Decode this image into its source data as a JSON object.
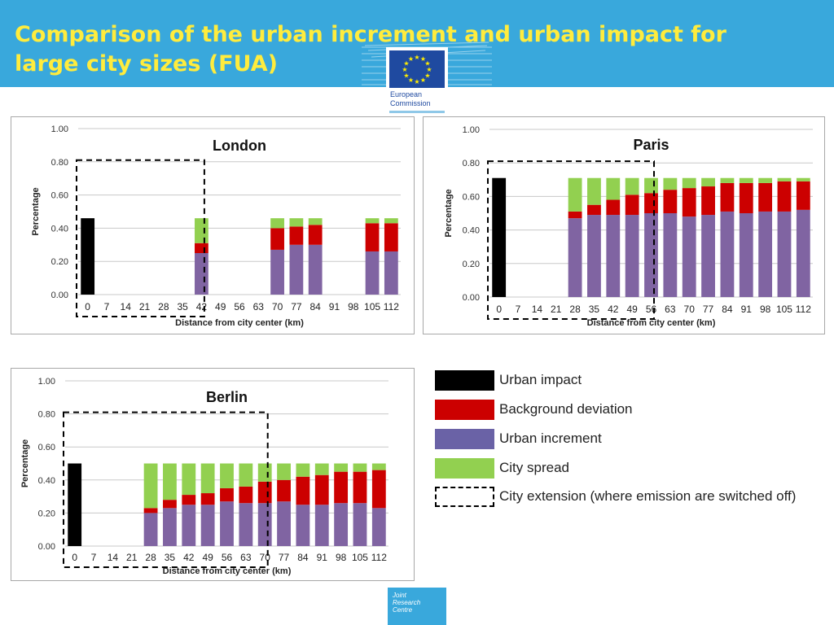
{
  "slide": {
    "title_line1": "Comparison of the urban increment and urban impact for",
    "title_line2": "large city sizes (FUA)",
    "logo": {
      "line1": "European",
      "line2": "Commission",
      "flag_color": "#1f4aa0",
      "star_color": "#ffed00"
    },
    "footer_logo": {
      "line1": "Joint",
      "line2": "Research",
      "line3": "Centre"
    }
  },
  "colors": {
    "urban_impact": "#000000",
    "background_deviation": "#cc0000",
    "urban_increment": "#8064a2",
    "city_spread": "#92d050",
    "header": "#39a8dc",
    "title": "#ffec3d"
  },
  "legend": [
    {
      "label": "Urban impact",
      "color": "#000000",
      "style": "solid"
    },
    {
      "label": "Background deviation",
      "color": "#cc0000",
      "style": "solid"
    },
    {
      "label": "Urban increment",
      "color": "#6a62a6",
      "style": "solid"
    },
    {
      "label": "City spread",
      "color": "#92d050",
      "style": "solid"
    },
    {
      "label": "City extension (where emission are switched off)",
      "color": "#000000",
      "style": "dashed"
    }
  ],
  "chart_data": [
    {
      "type": "bar",
      "stacked": true,
      "title": "London",
      "xlabel": "Distance from city center (km)",
      "ylabel": "Percentage",
      "ylim": [
        0,
        1
      ],
      "yticks": [
        "0.00",
        "0.20",
        "0.40",
        "0.60",
        "0.80",
        "1.00"
      ],
      "categories": [
        "0",
        "7",
        "14",
        "21",
        "28",
        "35",
        "42",
        "49",
        "56",
        "63",
        "70",
        "77",
        "84",
        "91",
        "98",
        "105",
        "112"
      ],
      "grid": true,
      "urban_impact": [
        0.46,
        0,
        0,
        0,
        0,
        0,
        0,
        0,
        0,
        0,
        0,
        0,
        0,
        0,
        0,
        0,
        0
      ],
      "series": [
        {
          "name": "Urban increment",
          "values": [
            0,
            0,
            0,
            0,
            0,
            0,
            0.25,
            0,
            0,
            0,
            0.27,
            0.3,
            0.3,
            0,
            0,
            0.26,
            0.26
          ]
        },
        {
          "name": "Background deviation",
          "values": [
            0,
            0,
            0,
            0,
            0,
            0,
            0.06,
            0,
            0,
            0,
            0.13,
            0.11,
            0.12,
            0,
            0,
            0.17,
            0.17
          ]
        },
        {
          "name": "City spread",
          "values": [
            0,
            0,
            0,
            0,
            0,
            0,
            0.15,
            0,
            0,
            0,
            0.06,
            0.05,
            0.04,
            0,
            0,
            0.03,
            0.03
          ]
        }
      ],
      "city_extension": {
        "from": "0",
        "to": "42",
        "top": 0.81
      }
    },
    {
      "type": "bar",
      "stacked": true,
      "title": "Paris",
      "xlabel": "Distance from city center (km)",
      "ylabel": "Percentage",
      "ylim": [
        0,
        1
      ],
      "yticks": [
        "0.00",
        "0.20",
        "0.40",
        "0.60",
        "0.80",
        "1.00"
      ],
      "categories": [
        "0",
        "7",
        "14",
        "21",
        "28",
        "35",
        "42",
        "49",
        "56",
        "63",
        "70",
        "77",
        "84",
        "91",
        "98",
        "105",
        "112"
      ],
      "grid": true,
      "urban_impact": [
        0.71,
        0,
        0,
        0,
        0,
        0,
        0,
        0,
        0,
        0,
        0,
        0,
        0,
        0,
        0,
        0,
        0
      ],
      "series": [
        {
          "name": "Urban increment",
          "values": [
            0,
            0,
            0,
            0,
            0.47,
            0.49,
            0.49,
            0.49,
            0.5,
            0.5,
            0.48,
            0.49,
            0.51,
            0.5,
            0.51,
            0.51,
            0.52
          ]
        },
        {
          "name": "Background deviation",
          "values": [
            0,
            0,
            0,
            0,
            0.04,
            0.06,
            0.09,
            0.12,
            0.12,
            0.14,
            0.17,
            0.17,
            0.17,
            0.18,
            0.17,
            0.18,
            0.17
          ]
        },
        {
          "name": "City spread",
          "values": [
            0,
            0,
            0,
            0,
            0.2,
            0.16,
            0.13,
            0.1,
            0.09,
            0.07,
            0.06,
            0.05,
            0.03,
            0.03,
            0.03,
            0.02,
            0.02
          ]
        }
      ],
      "city_extension": {
        "from": "0",
        "to": "56",
        "top": 0.81
      }
    },
    {
      "type": "bar",
      "stacked": true,
      "title": "Berlin",
      "xlabel": "Distance from city center (km)",
      "ylabel": "Percentage",
      "ylim": [
        0,
        1
      ],
      "yticks": [
        "0.00",
        "0.20",
        "0.40",
        "0.60",
        "0.80",
        "1.00"
      ],
      "categories": [
        "0",
        "7",
        "14",
        "21",
        "28",
        "35",
        "42",
        "49",
        "56",
        "63",
        "70",
        "77",
        "84",
        "91",
        "98",
        "105",
        "112"
      ],
      "grid": true,
      "urban_impact": [
        0.5,
        0,
        0,
        0,
        0,
        0,
        0,
        0,
        0,
        0,
        0,
        0,
        0,
        0,
        0,
        0,
        0
      ],
      "series": [
        {
          "name": "Urban increment",
          "values": [
            0,
            0,
            0,
            0,
            0.2,
            0.23,
            0.25,
            0.25,
            0.27,
            0.26,
            0.26,
            0.27,
            0.25,
            0.25,
            0.26,
            0.26,
            0.23
          ]
        },
        {
          "name": "Background deviation",
          "values": [
            0,
            0,
            0,
            0,
            0.03,
            0.05,
            0.06,
            0.07,
            0.08,
            0.1,
            0.13,
            0.13,
            0.17,
            0.18,
            0.19,
            0.19,
            0.23
          ]
        },
        {
          "name": "City spread",
          "values": [
            0,
            0,
            0,
            0,
            0.27,
            0.22,
            0.19,
            0.18,
            0.15,
            0.14,
            0.11,
            0.1,
            0.08,
            0.07,
            0.05,
            0.05,
            0.04
          ]
        }
      ],
      "city_extension": {
        "from": "0",
        "to": "70",
        "top": 0.81
      }
    }
  ]
}
